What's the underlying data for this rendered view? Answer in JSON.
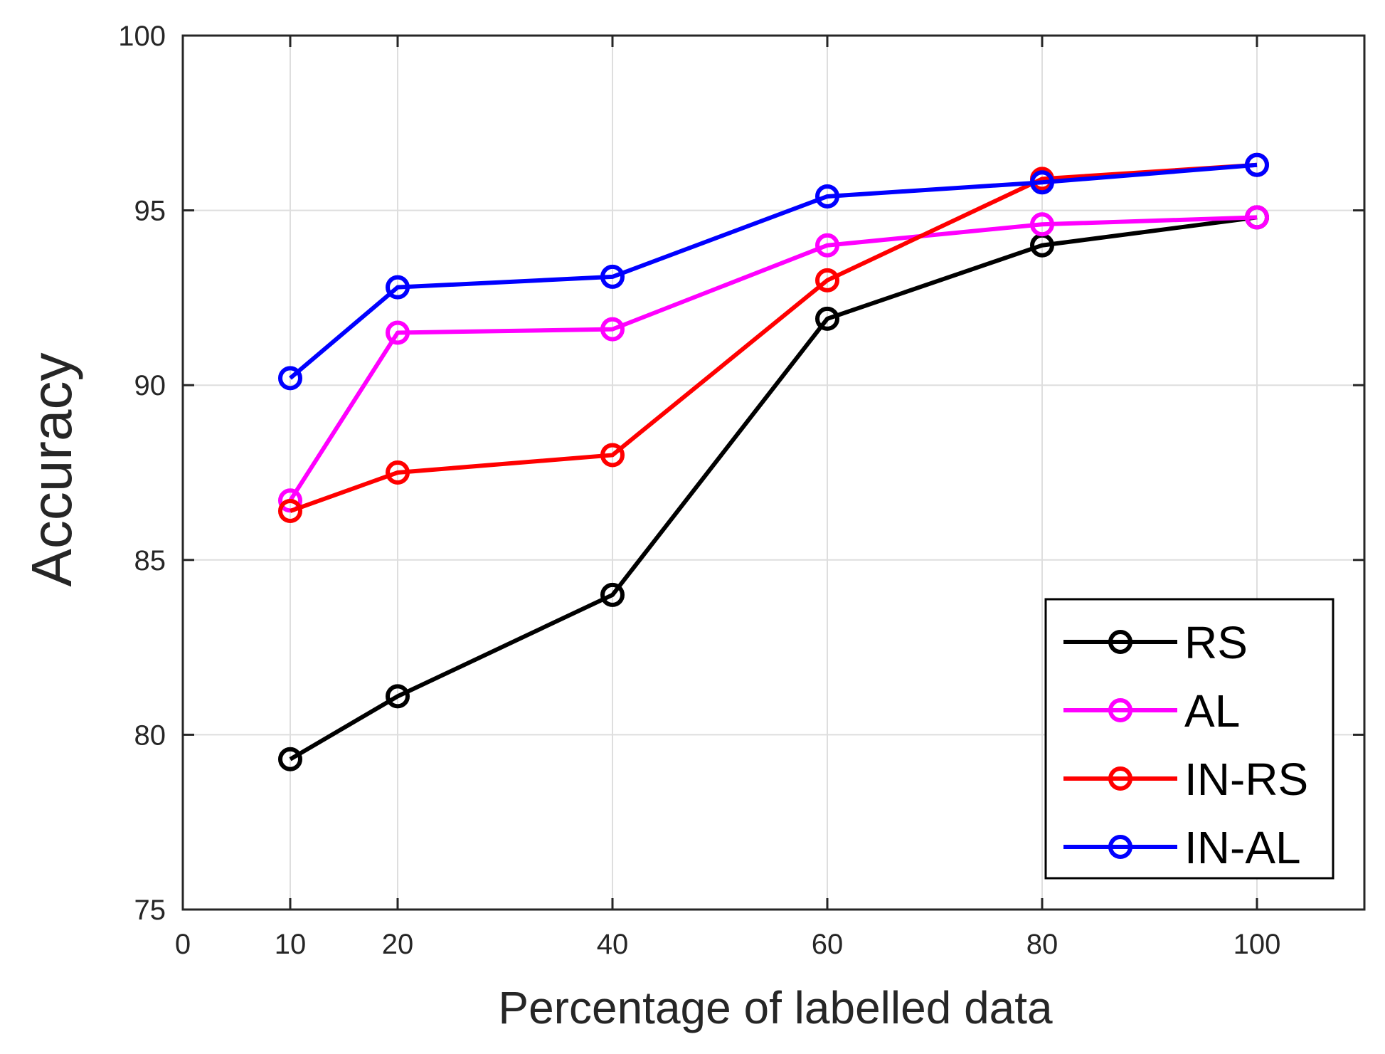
{
  "chart_data": {
    "type": "line",
    "title": "",
    "xlabel": "Percentage of labelled data",
    "ylabel": "Accuracy",
    "xlim": [
      0,
      110
    ],
    "ylim": [
      75,
      100
    ],
    "xticks": [
      0,
      10,
      20,
      40,
      60,
      80,
      100
    ],
    "yticks": [
      75,
      80,
      85,
      90,
      95,
      100
    ],
    "xtick_labels": [
      "0",
      "10",
      "20",
      "40",
      "60",
      "80",
      "100"
    ],
    "ytick_labels": [
      "75",
      "80",
      "85",
      "90",
      "95",
      "100"
    ],
    "grid": true,
    "legend_position": "bottom-right",
    "marker": "circle",
    "x": [
      10,
      20,
      40,
      60,
      80,
      100
    ],
    "series": [
      {
        "name": "RS",
        "color": "#000000",
        "values": [
          79.3,
          81.1,
          84.0,
          91.9,
          94.0,
          94.8
        ]
      },
      {
        "name": "AL",
        "color": "#ff00ff",
        "values": [
          86.7,
          91.5,
          91.6,
          94.0,
          94.6,
          94.8
        ]
      },
      {
        "name": "IN-RS",
        "color": "#ff0000",
        "values": [
          86.4,
          87.5,
          88.0,
          93.0,
          95.9,
          96.3
        ]
      },
      {
        "name": "IN-AL",
        "color": "#0000ff",
        "values": [
          90.2,
          92.8,
          93.1,
          95.4,
          95.8,
          96.3
        ]
      }
    ]
  }
}
